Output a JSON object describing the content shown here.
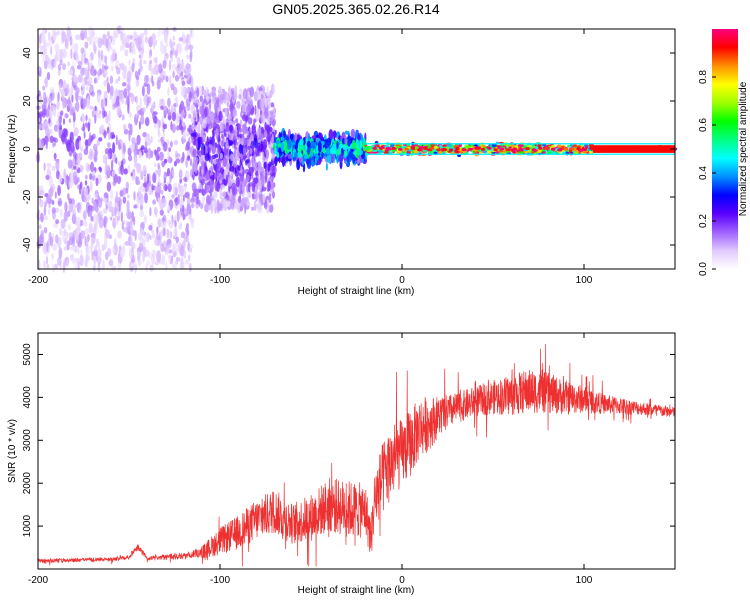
{
  "title": "GN05.2025.365.02.26.R14",
  "chart_data": [
    {
      "type": "heatmap",
      "xlabel": "Height of straight line (km)",
      "ylabel": "Frequency (Hz)",
      "xlim": [
        -200,
        150
      ],
      "ylim": [
        -50,
        50
      ],
      "xticks": [
        -200,
        -100,
        0,
        100
      ],
      "yticks": [
        -40,
        -20,
        0,
        20,
        40
      ],
      "colorbar": {
        "label": "Normalized spectral amplitude",
        "range": [
          0,
          1
        ],
        "ticks": [
          "0.0",
          "0.2",
          "0.4",
          "0.6",
          "0.8"
        ],
        "colors": [
          "#ffffff",
          "#e0c8ff",
          "#a060ff",
          "#5a00ff",
          "#0000ff",
          "#0090ff",
          "#00ffff",
          "#00ff80",
          "#00ff00",
          "#a0ff00",
          "#ffff00",
          "#ff9000",
          "#ff0000",
          "#ff0080"
        ]
      },
      "description_series": [
        {
          "x_range": [
            -200,
            -115
          ],
          "freq_spread": 50,
          "amplitude": 0.15
        },
        {
          "x_range": [
            -115,
            -70
          ],
          "freq_spread": 25,
          "amplitude": 0.22
        },
        {
          "x_range": [
            -70,
            -20
          ],
          "freq_spread": 8,
          "amplitude": 0.35
        },
        {
          "x_range": [
            -20,
            105
          ],
          "freq_spread": 3,
          "amplitude": 0.85
        },
        {
          "x_range": [
            105,
            150
          ],
          "freq_spread": 1,
          "amplitude": 0.9
        }
      ]
    },
    {
      "type": "line",
      "xlabel": "Height of straight line (km)",
      "ylabel": "SNR (10 * v/v)",
      "xlim": [
        -200,
        150
      ],
      "ylim": [
        0,
        5500
      ],
      "xticks": [
        -200,
        -100,
        0,
        100
      ],
      "yticks": [
        1000,
        2000,
        3000,
        4000,
        5000
      ],
      "series": [
        {
          "color": "#ee3030",
          "x": [
            -200,
            -180,
            -160,
            -150,
            -145,
            -140,
            -120,
            -110,
            -100,
            -90,
            -80,
            -70,
            -60,
            -50,
            -40,
            -30,
            -20,
            -17,
            -15,
            -10,
            -5,
            0,
            5,
            10,
            15,
            20,
            30,
            40,
            50,
            60,
            70,
            80,
            90,
            100,
            110,
            120,
            130,
            140,
            150
          ],
          "y": [
            180,
            200,
            220,
            260,
            500,
            240,
            300,
            380,
            650,
            850,
            1150,
            1350,
            1050,
            1200,
            1500,
            1400,
            1350,
            700,
            1650,
            2150,
            2550,
            2700,
            2950,
            3300,
            3400,
            3550,
            3750,
            3900,
            4000,
            4050,
            4150,
            4100,
            4000,
            3950,
            3850,
            3800,
            3750,
            3700,
            3650
          ],
          "noise": [
            80,
            80,
            80,
            100,
            150,
            80,
            120,
            200,
            400,
            500,
            600,
            650,
            600,
            700,
            800,
            850,
            800,
            600,
            900,
            1100,
            1100,
            1000,
            1000,
            900,
            800,
            600,
            450,
            450,
            500,
            600,
            650,
            600,
            500,
            400,
            300,
            250,
            200,
            180,
            160
          ]
        }
      ]
    }
  ]
}
